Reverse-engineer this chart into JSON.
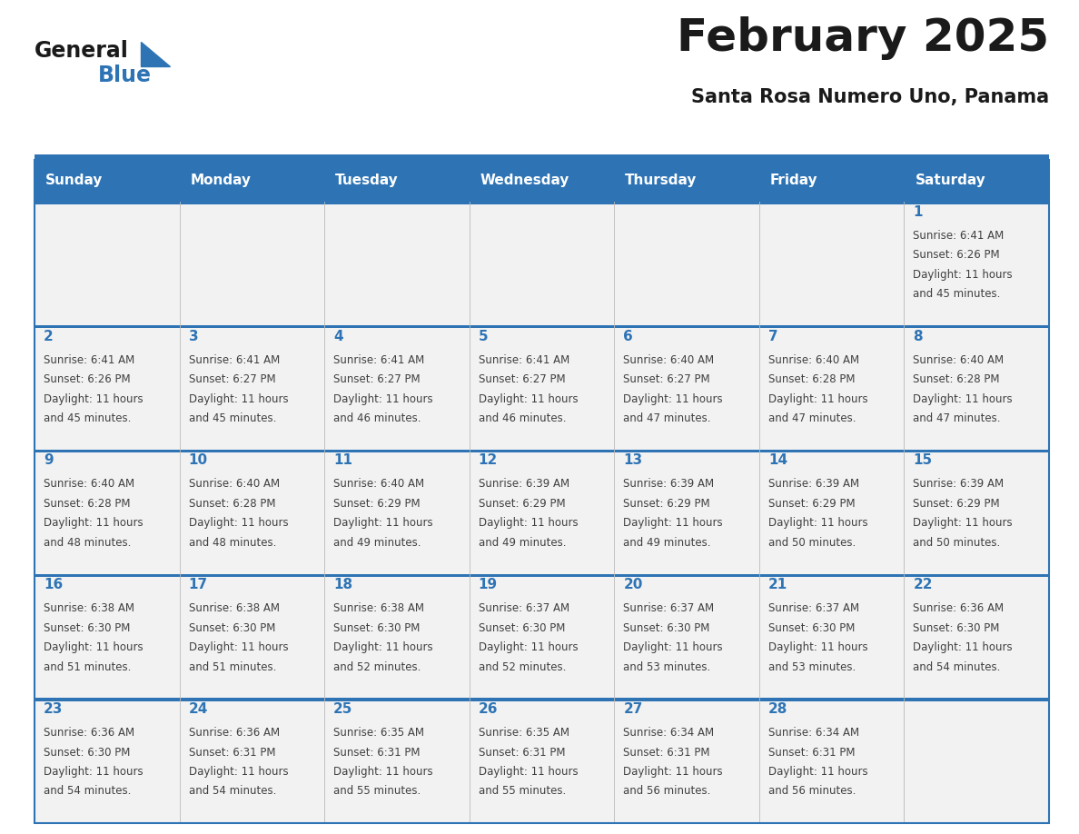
{
  "title": "February 2025",
  "subtitle": "Santa Rosa Numero Uno, Panama",
  "days_of_week": [
    "Sunday",
    "Monday",
    "Tuesday",
    "Wednesday",
    "Thursday",
    "Friday",
    "Saturday"
  ],
  "header_bg": "#2E74B5",
  "header_text": "#FFFFFF",
  "row_bg": "#F2F2F2",
  "separator_color": "#2E74B5",
  "day_num_color": "#2E74B5",
  "cell_text_color": "#404040",
  "title_color": "#1a1a1a",
  "subtitle_color": "#1a1a1a",
  "logo_general_color": "#1a1a1a",
  "logo_blue_color": "#2E74B5",
  "grid_line_color": "#BBBBBB",
  "weeks": [
    [
      {
        "day": null,
        "info": null
      },
      {
        "day": null,
        "info": null
      },
      {
        "day": null,
        "info": null
      },
      {
        "day": null,
        "info": null
      },
      {
        "day": null,
        "info": null
      },
      {
        "day": null,
        "info": null
      },
      {
        "day": 1,
        "info": "Sunrise: 6:41 AM\nSunset: 6:26 PM\nDaylight: 11 hours\nand 45 minutes."
      }
    ],
    [
      {
        "day": 2,
        "info": "Sunrise: 6:41 AM\nSunset: 6:26 PM\nDaylight: 11 hours\nand 45 minutes."
      },
      {
        "day": 3,
        "info": "Sunrise: 6:41 AM\nSunset: 6:27 PM\nDaylight: 11 hours\nand 45 minutes."
      },
      {
        "day": 4,
        "info": "Sunrise: 6:41 AM\nSunset: 6:27 PM\nDaylight: 11 hours\nand 46 minutes."
      },
      {
        "day": 5,
        "info": "Sunrise: 6:41 AM\nSunset: 6:27 PM\nDaylight: 11 hours\nand 46 minutes."
      },
      {
        "day": 6,
        "info": "Sunrise: 6:40 AM\nSunset: 6:27 PM\nDaylight: 11 hours\nand 47 minutes."
      },
      {
        "day": 7,
        "info": "Sunrise: 6:40 AM\nSunset: 6:28 PM\nDaylight: 11 hours\nand 47 minutes."
      },
      {
        "day": 8,
        "info": "Sunrise: 6:40 AM\nSunset: 6:28 PM\nDaylight: 11 hours\nand 47 minutes."
      }
    ],
    [
      {
        "day": 9,
        "info": "Sunrise: 6:40 AM\nSunset: 6:28 PM\nDaylight: 11 hours\nand 48 minutes."
      },
      {
        "day": 10,
        "info": "Sunrise: 6:40 AM\nSunset: 6:28 PM\nDaylight: 11 hours\nand 48 minutes."
      },
      {
        "day": 11,
        "info": "Sunrise: 6:40 AM\nSunset: 6:29 PM\nDaylight: 11 hours\nand 49 minutes."
      },
      {
        "day": 12,
        "info": "Sunrise: 6:39 AM\nSunset: 6:29 PM\nDaylight: 11 hours\nand 49 minutes."
      },
      {
        "day": 13,
        "info": "Sunrise: 6:39 AM\nSunset: 6:29 PM\nDaylight: 11 hours\nand 49 minutes."
      },
      {
        "day": 14,
        "info": "Sunrise: 6:39 AM\nSunset: 6:29 PM\nDaylight: 11 hours\nand 50 minutes."
      },
      {
        "day": 15,
        "info": "Sunrise: 6:39 AM\nSunset: 6:29 PM\nDaylight: 11 hours\nand 50 minutes."
      }
    ],
    [
      {
        "day": 16,
        "info": "Sunrise: 6:38 AM\nSunset: 6:30 PM\nDaylight: 11 hours\nand 51 minutes."
      },
      {
        "day": 17,
        "info": "Sunrise: 6:38 AM\nSunset: 6:30 PM\nDaylight: 11 hours\nand 51 minutes."
      },
      {
        "day": 18,
        "info": "Sunrise: 6:38 AM\nSunset: 6:30 PM\nDaylight: 11 hours\nand 52 minutes."
      },
      {
        "day": 19,
        "info": "Sunrise: 6:37 AM\nSunset: 6:30 PM\nDaylight: 11 hours\nand 52 minutes."
      },
      {
        "day": 20,
        "info": "Sunrise: 6:37 AM\nSunset: 6:30 PM\nDaylight: 11 hours\nand 53 minutes."
      },
      {
        "day": 21,
        "info": "Sunrise: 6:37 AM\nSunset: 6:30 PM\nDaylight: 11 hours\nand 53 minutes."
      },
      {
        "day": 22,
        "info": "Sunrise: 6:36 AM\nSunset: 6:30 PM\nDaylight: 11 hours\nand 54 minutes."
      }
    ],
    [
      {
        "day": 23,
        "info": "Sunrise: 6:36 AM\nSunset: 6:30 PM\nDaylight: 11 hours\nand 54 minutes."
      },
      {
        "day": 24,
        "info": "Sunrise: 6:36 AM\nSunset: 6:31 PM\nDaylight: 11 hours\nand 54 minutes."
      },
      {
        "day": 25,
        "info": "Sunrise: 6:35 AM\nSunset: 6:31 PM\nDaylight: 11 hours\nand 55 minutes."
      },
      {
        "day": 26,
        "info": "Sunrise: 6:35 AM\nSunset: 6:31 PM\nDaylight: 11 hours\nand 55 minutes."
      },
      {
        "day": 27,
        "info": "Sunrise: 6:34 AM\nSunset: 6:31 PM\nDaylight: 11 hours\nand 56 minutes."
      },
      {
        "day": 28,
        "info": "Sunrise: 6:34 AM\nSunset: 6:31 PM\nDaylight: 11 hours\nand 56 minutes."
      },
      {
        "day": null,
        "info": null
      }
    ]
  ]
}
